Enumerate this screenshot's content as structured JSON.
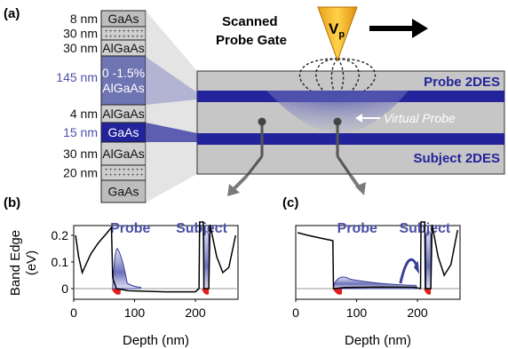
{
  "panel_labels": {
    "a": "(a)",
    "b": "(b)",
    "c": "(c)"
  },
  "stack": {
    "layers": [
      {
        "thickness": "8 nm",
        "material": "GaAs",
        "fill": "#bdbdbd"
      },
      {
        "thickness": "30 nm",
        "material": "",
        "fill": "#cfcfcf",
        "doped": true
      },
      {
        "thickness": "30 nm",
        "material": "AlGaAs",
        "fill": "#cfcfcf"
      },
      {
        "thickness": "145 nm",
        "material": "0 -1.5%\nAlGaAs",
        "fill": "#6f74b3",
        "highlight": true
      },
      {
        "thickness": "4 nm",
        "material": "AlGaAs",
        "fill": "#cfcfcf"
      },
      {
        "thickness": "15 nm",
        "material": "GaAs",
        "fill": "#23239b",
        "highlight": true
      },
      {
        "thickness": "30 nm",
        "material": "AlGaAs",
        "fill": "#cfcfcf"
      },
      {
        "thickness": "20 nm",
        "material": "",
        "fill": "#cfcfcf",
        "doped": true
      },
      {
        "thickness": "",
        "material": "GaAs",
        "fill": "#bdbdbd"
      }
    ]
  },
  "gate": {
    "title_line1": "Scanned",
    "title_line2": "Probe Gate",
    "tip_label": "V",
    "tip_sub": "p"
  },
  "sample": {
    "probe_label": "Probe 2DES",
    "subject_label": "Subject 2DES",
    "virtual_label": "Virtual Probe"
  },
  "plots": {
    "ylabel_line1": "Band Edge",
    "ylabel_line2": "(eV)",
    "xlabel": "Depth (nm)",
    "yticks": [
      "0.2",
      "0.1",
      "0"
    ],
    "xticks": [
      "0",
      "100",
      "200"
    ],
    "legend_probe": "Probe",
    "legend_subject": "Subject"
  },
  "colors": {
    "accent": "#23239b",
    "label_blue": "#4a51a8",
    "arrow_gray": "#7a7a7a"
  }
}
